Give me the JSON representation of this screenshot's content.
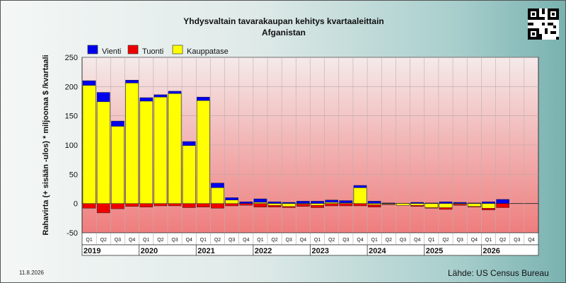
{
  "header": {
    "title": "Yhdysvaltain tavarakaupan kehitys kvartaaleittain",
    "subtitle": "Afganistan"
  },
  "footer": {
    "date": "11.8.2026",
    "source": "Lähde: US Census Bureau"
  },
  "qr_icon": "qr-code-icon",
  "chart_data": {
    "type": "bar",
    "title": "Yhdysvaltain tavarakaupan kehitys kvartaaleittain",
    "subtitle": "Afganistan",
    "ylabel": "Rahavirta (+ sisään -ulos)  * miljoonaa $ /kvartaali",
    "ylim": [
      -50,
      250
    ],
    "yticks": [
      -50,
      0,
      50,
      100,
      150,
      200,
      250
    ],
    "grid": true,
    "legend_position": "top-left",
    "quarter_labels": [
      "Q1",
      "Q2",
      "Q3",
      "Q4",
      "Q1",
      "Q2",
      "Q3",
      "Q4",
      "Q1",
      "Q2",
      "Q3",
      "Q4",
      "Q1",
      "Q2",
      "Q3",
      "Q4",
      "Q1",
      "Q2",
      "Q3",
      "Q4",
      "Q1",
      "Q2",
      "Q3",
      "Q4",
      "Q1",
      "Q2",
      "Q3",
      "Q4",
      "Q1",
      "Q2",
      "Q3",
      "Q4"
    ],
    "years": [
      "2019",
      "2020",
      "2021",
      "2022",
      "2023",
      "2024",
      "2025",
      "2026"
    ],
    "series": [
      {
        "name": "Vienti",
        "color": "#0000ee",
        "values": [
          210,
          190,
          141,
          211,
          181,
          186,
          192,
          106,
          182,
          35,
          10,
          3,
          8,
          3,
          2,
          4,
          4,
          6,
          5,
          31,
          4,
          1,
          0,
          2,
          1,
          3,
          2,
          1,
          3,
          7,
          null,
          null
        ]
      },
      {
        "name": "Tuonti",
        "color": "#ee0000",
        "values": [
          -8,
          -16,
          -9,
          -5,
          -6,
          -4,
          -4,
          -7,
          -6,
          -8,
          -4,
          -3,
          -6,
          -6,
          -7,
          -5,
          -7,
          -4,
          -4,
          -4,
          -6,
          -2,
          -3,
          -5,
          -8,
          -10,
          -3,
          -6,
          -11,
          -7,
          null,
          null
        ]
      },
      {
        "name": "Kauppatase",
        "color": "#ffff00",
        "values": [
          202,
          174,
          132,
          206,
          175,
          182,
          188,
          99,
          176,
          27,
          6,
          0,
          2,
          -3,
          -5,
          -1,
          -3,
          2,
          1,
          27,
          -2,
          -1,
          -3,
          -3,
          -7,
          -7,
          -1,
          -5,
          -8,
          0,
          null,
          null
        ]
      }
    ]
  }
}
